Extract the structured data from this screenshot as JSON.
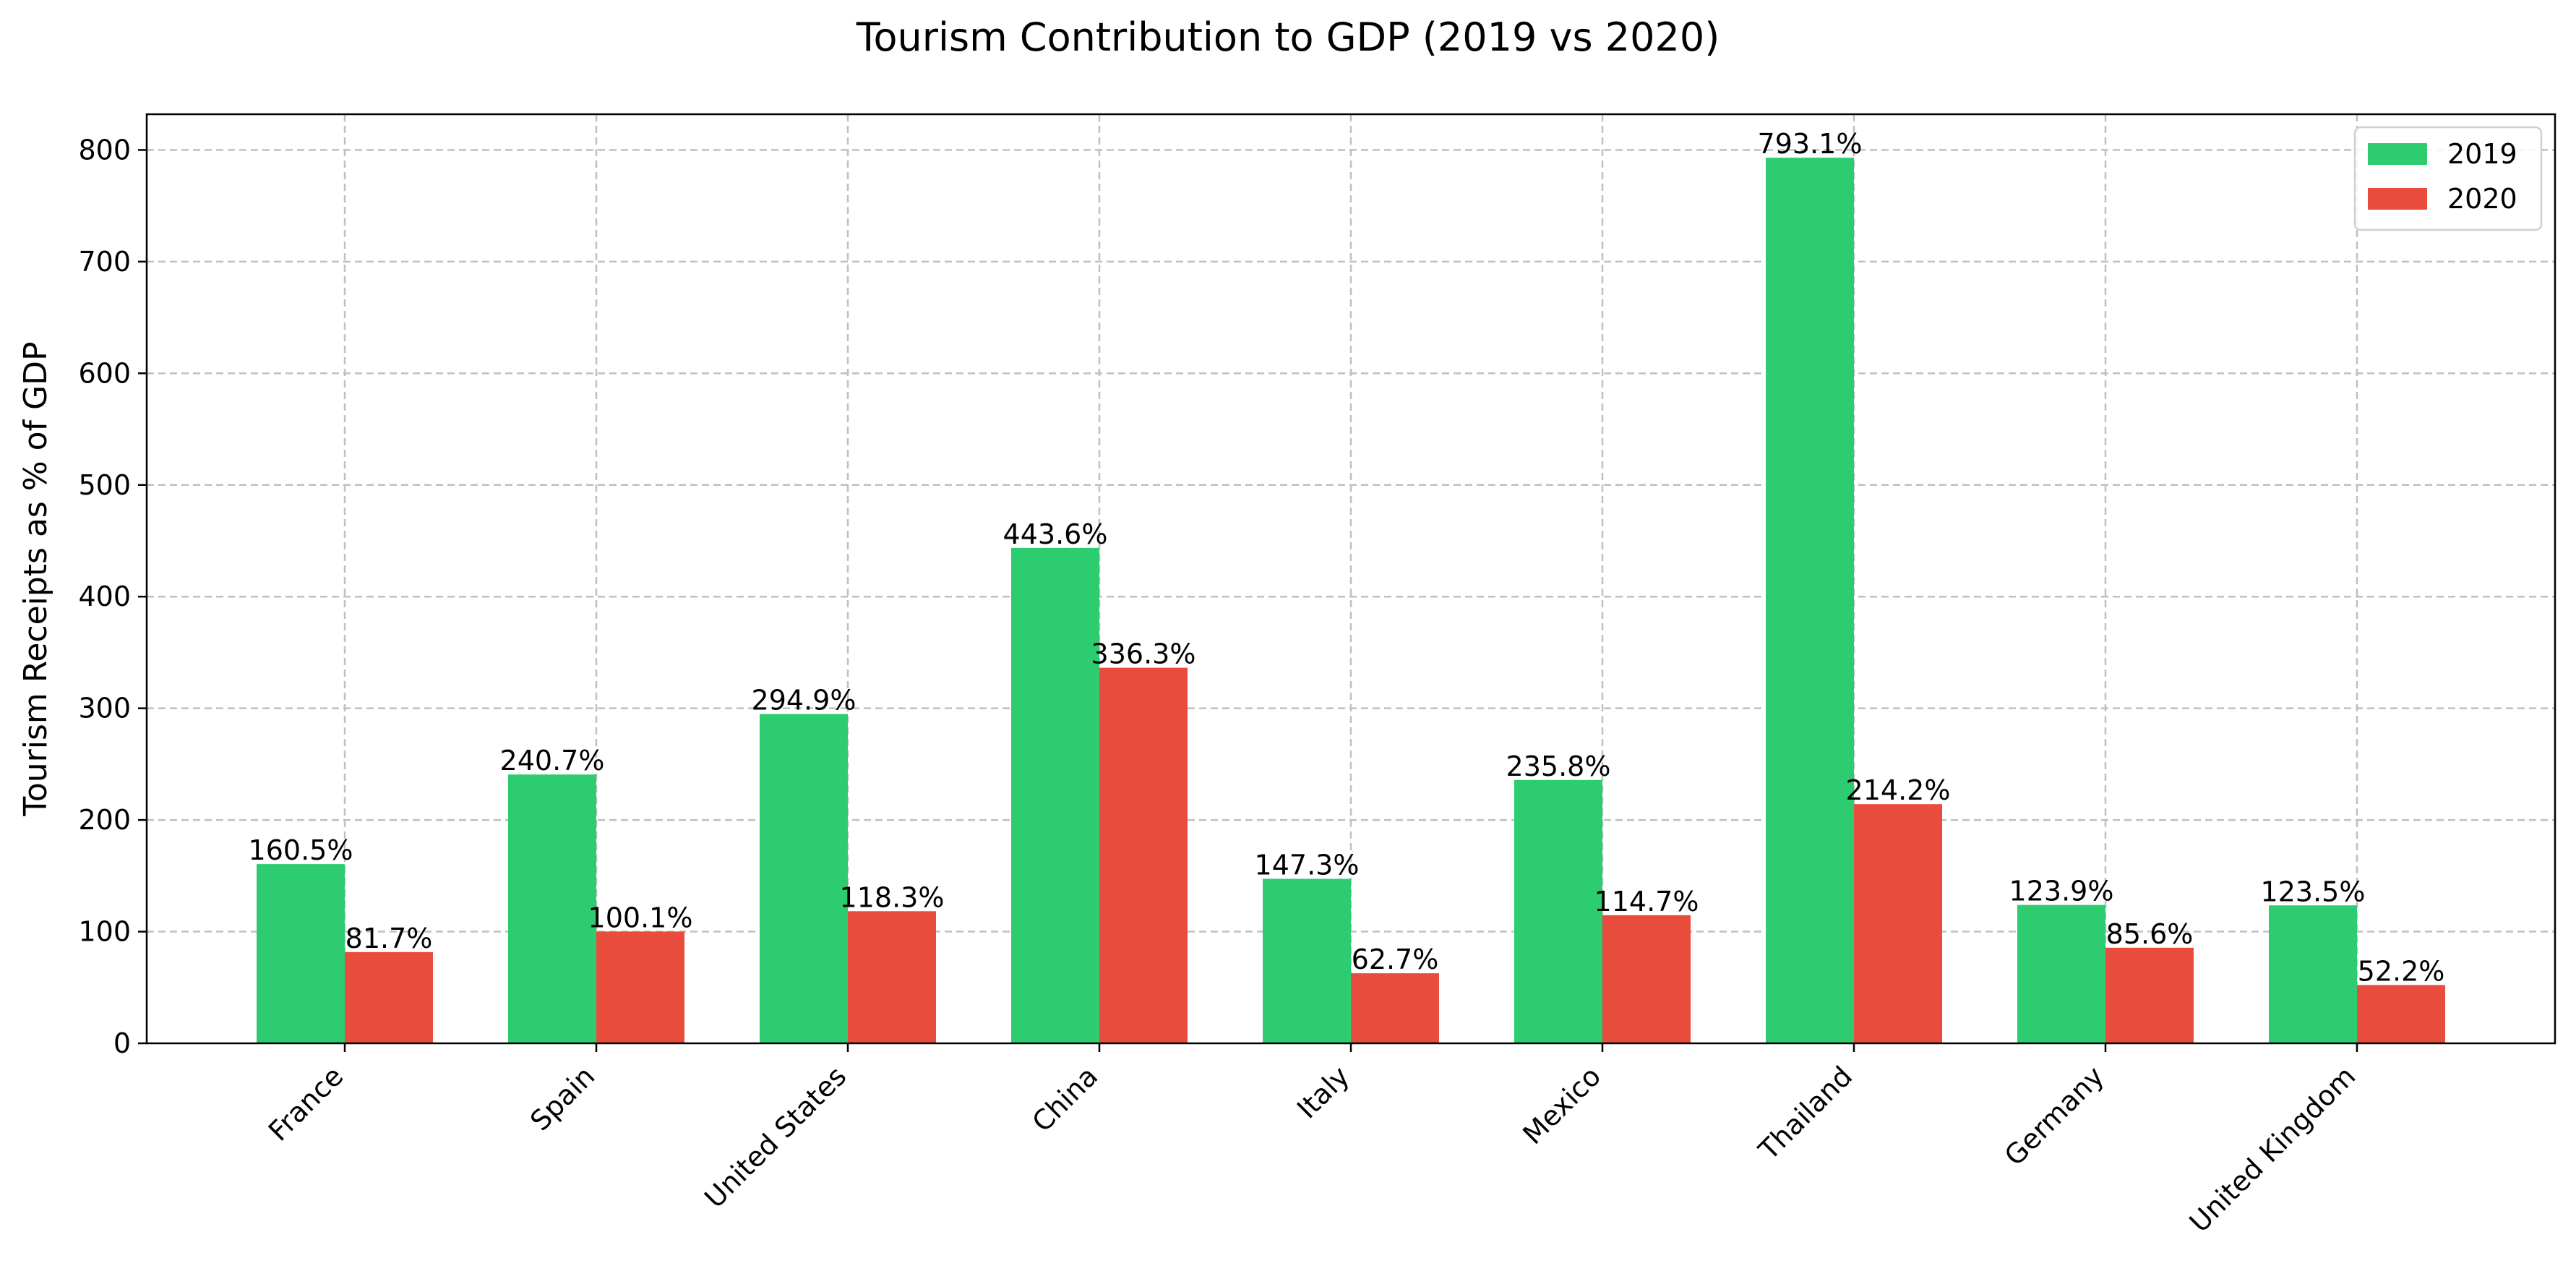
{
  "chart_data": {
    "type": "bar",
    "title": "Tourism Contribution to GDP (2019 vs 2020)",
    "xlabel": "",
    "ylabel": "Tourism Receipts as % of GDP",
    "categories": [
      "France",
      "Spain",
      "United States",
      "China",
      "Italy",
      "Mexico",
      "Thailand",
      "Germany",
      "United Kingdom"
    ],
    "series": [
      {
        "name": "2019",
        "color": "#2ecc71",
        "values": [
          160.5,
          240.7,
          294.9,
          443.6,
          147.3,
          235.8,
          793.1,
          123.9,
          123.5
        ]
      },
      {
        "name": "2020",
        "color": "#e74c3c",
        "values": [
          81.7,
          100.1,
          118.3,
          336.3,
          62.7,
          114.7,
          214.2,
          85.6,
          52.2
        ]
      }
    ],
    "ylim": [
      0,
      832
    ],
    "yticks": [
      0,
      100,
      200,
      300,
      400,
      500,
      600,
      700,
      800
    ],
    "value_suffix": "%",
    "grid": true,
    "legend_position": "top-right"
  }
}
